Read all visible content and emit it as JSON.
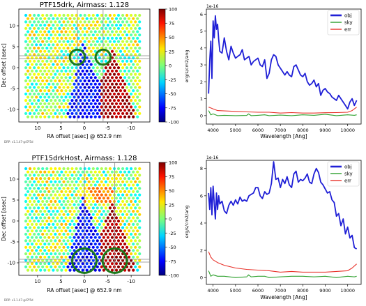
{
  "panels": [
    {
      "title": "PTF15drk, Airmass: 1.128",
      "xlabel": "RA offset [asec] @  652.9 nm",
      "ylabel": "Dec offset [asec]",
      "xticks": [
        "10",
        "5",
        "0",
        "-5",
        "-10"
      ],
      "yticks": [
        "10",
        "5",
        "0",
        "-5",
        "-10"
      ],
      "colorbar_ticks": [
        "100",
        "75",
        "50",
        "25",
        "0",
        "-25",
        "-50",
        "-75",
        "-100"
      ],
      "version": "DRP: v1.1.47-g47f5d",
      "markers": [
        {
          "ra": 1.5,
          "dec": 2.5,
          "r": 1.6
        },
        {
          "ra": -4.0,
          "dec": 2.5,
          "r": 1.6
        }
      ],
      "crosshair_dec": 2.5,
      "crosshair_ra": [
        1.5,
        -4.0
      ]
    },
    {
      "title": "PTF15drkHost, Airmass: 1.128",
      "xlabel": "RA offset [asec] @  652.9 nm",
      "ylabel": "Dec offset [asec]",
      "xticks": [
        "10",
        "5",
        "0",
        "-5",
        "-10"
      ],
      "yticks": [
        "10",
        "5",
        "0",
        "-5",
        "-10"
      ],
      "colorbar_ticks": [
        "100",
        "75",
        "50",
        "25",
        "0",
        "-25",
        "-50",
        "-75",
        "-100"
      ],
      "version": "DRP: v1.1.47-g47f5d",
      "markers": [
        {
          "ra": 0.0,
          "dec": -9.5,
          "r": 2.6
        },
        {
          "ra": -6.5,
          "dec": -9.5,
          "r": 2.6
        }
      ],
      "crosshair_dec": -9.5,
      "crosshair_ra": [
        0.0,
        -6.5
      ]
    }
  ],
  "spectra": [
    {
      "exponent": "1e-16",
      "ylabel": "erg/s/cm2/ang",
      "xlabel": "Wavelength [Ang]",
      "xticks": [
        "4000",
        "5000",
        "6000",
        "7000",
        "8000",
        "9000",
        "10000"
      ],
      "yticks": [
        "0",
        "1",
        "2",
        "3",
        "4",
        "5",
        "6"
      ],
      "legend": [
        "obj",
        "sky",
        "err"
      ]
    },
    {
      "exponent": "1e-16",
      "ylabel": "erg/s/cm2/ang",
      "xlabel": "Wavelength [Ang]",
      "xticks": [
        "4000",
        "5000",
        "6000",
        "7000",
        "8000",
        "9000",
        "10000"
      ],
      "yticks": [
        "0",
        "2",
        "4",
        "6",
        "8"
      ],
      "legend": [
        "obj",
        "sky",
        "err"
      ]
    }
  ],
  "colors": {
    "obj": "#1f1fd6",
    "sky": "#2ca02c",
    "err": "#e8322a",
    "marker": "#1c7a1c"
  },
  "chart_data": [
    {
      "type": "line",
      "title": "",
      "xlabel": "Wavelength [Ang]",
      "ylabel": "erg/s/cm2/ang",
      "xlim": [
        3700,
        10600
      ],
      "ylim": [
        -0.5,
        6.3
      ],
      "series": [
        {
          "name": "obj",
          "x": [
            3800,
            3850,
            3900,
            3950,
            4000,
            4050,
            4100,
            4150,
            4200,
            4250,
            4300,
            4400,
            4500,
            4600,
            4700,
            4800,
            4900,
            5000,
            5100,
            5200,
            5300,
            5400,
            5500,
            5600,
            5700,
            5800,
            5900,
            6000,
            6100,
            6200,
            6300,
            6400,
            6500,
            6600,
            6700,
            6800,
            6900,
            7000,
            7100,
            7200,
            7300,
            7400,
            7500,
            7600,
            7700,
            7800,
            7900,
            8000,
            8100,
            8200,
            8300,
            8400,
            8500,
            8600,
            8700,
            8800,
            8900,
            9000,
            9100,
            9200,
            9300,
            9400,
            9500,
            9600,
            9700,
            9800,
            9900,
            10000,
            10100,
            10200,
            10300,
            10400
          ],
          "y": [
            1.3,
            3.2,
            4.4,
            2.2,
            5.6,
            4.6,
            5.9,
            5.1,
            5.4,
            4.5,
            3.8,
            3.7,
            4.6,
            3.8,
            3.3,
            4.1,
            3.7,
            3.4,
            3.5,
            3.6,
            3.9,
            3.3,
            3.4,
            3.5,
            3.0,
            3.2,
            3.3,
            3.4,
            3.0,
            2.9,
            3.3,
            2.2,
            2.5,
            3.3,
            3.6,
            3.5,
            3.0,
            2.8,
            2.6,
            2.4,
            2.6,
            2.4,
            2.3,
            2.9,
            3.0,
            2.7,
            2.4,
            2.3,
            2.5,
            2.0,
            1.8,
            1.9,
            2.1,
            1.7,
            1.9,
            1.2,
            1.5,
            1.6,
            1.4,
            1.3,
            1.1,
            1.0,
            0.9,
            1.2,
            1.0,
            0.8,
            0.6,
            0.4,
            0.8,
            1.0,
            0.6,
            0.9
          ]
        },
        {
          "name": "sky",
          "x": [
            3800,
            3900,
            4000,
            4200,
            4500,
            5000,
            5500,
            5577,
            5700,
            6000,
            6300,
            6500,
            7000,
            7500,
            8000,
            8500,
            9000,
            9500,
            10000,
            10300,
            10400
          ],
          "y": [
            0.3,
            0.05,
            0.1,
            0.0,
            0.02,
            0.0,
            0.01,
            0.1,
            0.0,
            0.02,
            0.05,
            0.0,
            0.03,
            0.0,
            0.05,
            0.02,
            0.08,
            0.0,
            0.05,
            0.02,
            0.05
          ]
        },
        {
          "name": "err",
          "x": [
            3800,
            3900,
            4000,
            4200,
            4500,
            5000,
            5500,
            6000,
            6500,
            7000,
            7500,
            8000,
            8500,
            9000,
            9500,
            10000,
            10200,
            10400
          ],
          "y": [
            0.5,
            0.45,
            0.4,
            0.3,
            0.28,
            0.25,
            0.22,
            0.2,
            0.2,
            0.15,
            0.18,
            0.15,
            0.15,
            0.17,
            0.18,
            0.2,
            0.3,
            0.5
          ]
        }
      ]
    },
    {
      "type": "line",
      "title": "",
      "xlabel": "Wavelength [Ang]",
      "ylabel": "erg/s/cm2/ang",
      "xlim": [
        3700,
        10600
      ],
      "ylim": [
        -0.5,
        8.6
      ],
      "series": [
        {
          "name": "obj",
          "x": [
            3800,
            3850,
            3900,
            3950,
            4000,
            4050,
            4100,
            4150,
            4200,
            4250,
            4300,
            4400,
            4500,
            4600,
            4700,
            4800,
            4900,
            5000,
            5100,
            5200,
            5300,
            5400,
            5500,
            5600,
            5700,
            5800,
            5900,
            6000,
            6100,
            6200,
            6300,
            6400,
            6500,
            6600,
            6700,
            6800,
            6900,
            7000,
            7100,
            7200,
            7300,
            7400,
            7500,
            7600,
            7700,
            7800,
            7900,
            8000,
            8100,
            8200,
            8300,
            8400,
            8500,
            8600,
            8700,
            8800,
            8900,
            9000,
            9100,
            9200,
            9300,
            9400,
            9500,
            9600,
            9700,
            9800,
            9900,
            10000,
            10100,
            10200,
            10300,
            10400
          ],
          "y": [
            6.2,
            5.0,
            6.6,
            4.6,
            6.7,
            5.5,
            4.3,
            6.2,
            5.0,
            6.0,
            5.4,
            5.6,
            4.9,
            4.7,
            5.3,
            5.6,
            5.3,
            5.7,
            5.4,
            5.9,
            5.6,
            5.7,
            5.6,
            6.0,
            6.1,
            6.2,
            6.6,
            6.6,
            6.0,
            5.8,
            6.3,
            6.1,
            6.2,
            6.9,
            8.5,
            7.2,
            7.3,
            6.6,
            7.2,
            6.9,
            7.4,
            6.8,
            6.6,
            7.6,
            7.8,
            7.0,
            7.2,
            7.1,
            7.3,
            7.6,
            7.0,
            6.9,
            7.6,
            8.0,
            7.7,
            7.0,
            6.8,
            6.5,
            6.2,
            6.3,
            5.7,
            5.5,
            4.5,
            4.7,
            3.8,
            4.3,
            3.2,
            3.7,
            2.9,
            3.1,
            2.2,
            2.1
          ]
        },
        {
          "name": "sky",
          "x": [
            3800,
            3900,
            4000,
            4200,
            4500,
            5000,
            5500,
            5577,
            5700,
            6000,
            6300,
            6500,
            7000,
            7500,
            8000,
            8500,
            9000,
            9500,
            10000,
            10300,
            10400
          ],
          "y": [
            0.5,
            0.1,
            0.2,
            0.1,
            0.1,
            0.0,
            0.05,
            0.2,
            0.05,
            0.1,
            0.1,
            0.0,
            0.05,
            0.1,
            0.1,
            0.05,
            0.1,
            0.0,
            0.1,
            0.05,
            0.1
          ]
        },
        {
          "name": "err",
          "x": [
            3800,
            3900,
            4000,
            4200,
            4500,
            5000,
            5500,
            6000,
            6500,
            7000,
            7500,
            8000,
            8500,
            9000,
            9500,
            10000,
            10200,
            10400
          ],
          "y": [
            1.9,
            1.5,
            1.3,
            1.1,
            0.9,
            0.7,
            0.6,
            0.55,
            0.5,
            0.4,
            0.45,
            0.4,
            0.4,
            0.4,
            0.45,
            0.5,
            0.7,
            1.0
          ]
        }
      ]
    }
  ]
}
